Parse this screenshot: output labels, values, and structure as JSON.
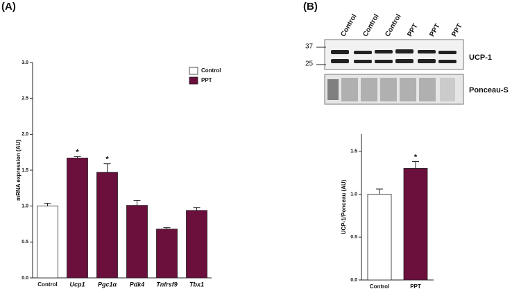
{
  "panels": [
    "(A)",
    "(B)"
  ],
  "blot": {
    "lanes": [
      "Control",
      "Control",
      "Control",
      "PPT",
      "PPT",
      "PPT"
    ],
    "markers": [
      "37",
      "25"
    ],
    "labels": [
      "UCP-1",
      "Ponceau-S"
    ]
  },
  "chart_data": [
    {
      "type": "bar",
      "y_label": "mRNA expression (AU)",
      "categories": [
        "Control",
        "Ucp1",
        "Pgc1α",
        "Pdk4",
        "Tnfrsf9",
        "Tbx1"
      ],
      "series": [
        {
          "name": "Control",
          "color": "#ffffff",
          "values": [
            1.0,
            null,
            null,
            null,
            null,
            null
          ],
          "errors": [
            0.04,
            null,
            null,
            null,
            null,
            null
          ]
        },
        {
          "name": "PPT",
          "color": "#6b0f3c",
          "values": [
            null,
            1.67,
            1.47,
            1.01,
            0.68,
            0.94
          ],
          "errors": [
            null,
            0.02,
            0.12,
            0.07,
            0.02,
            0.04
          ]
        }
      ],
      "significance": [
        null,
        "*",
        "*",
        null,
        null,
        null
      ],
      "ylim": [
        0,
        3
      ],
      "yticks": [
        {
          "value": 0,
          "label": "0.0"
        },
        0.5,
        {
          "value": 1,
          "label": "1.0"
        },
        1.5,
        {
          "value": 2,
          "label": "2.0"
        },
        2.5,
        {
          "value": 3,
          "label": "3.0"
        }
      ],
      "legend": "top-right"
    },
    {
      "type": "bar",
      "y_label": "UCP-1/Ponceau (AU)",
      "categories": [
        "Control",
        "PPT"
      ],
      "series": [
        {
          "name": "Control",
          "color": "#ffffff",
          "values": [
            1.0,
            null
          ],
          "errors": [
            0.06,
            null
          ]
        },
        {
          "name": "PPT",
          "color": "#6b0f3c",
          "values": [
            null,
            1.3
          ],
          "errors": [
            null,
            0.08
          ]
        }
      ],
      "significance": [
        null,
        "*"
      ],
      "ylim": [
        0,
        1.7
      ],
      "yticks": [
        {
          "value": 0,
          "label": "0.0"
        },
        0.5,
        {
          "value": 1,
          "label": "1.0"
        },
        1.5
      ]
    }
  ]
}
